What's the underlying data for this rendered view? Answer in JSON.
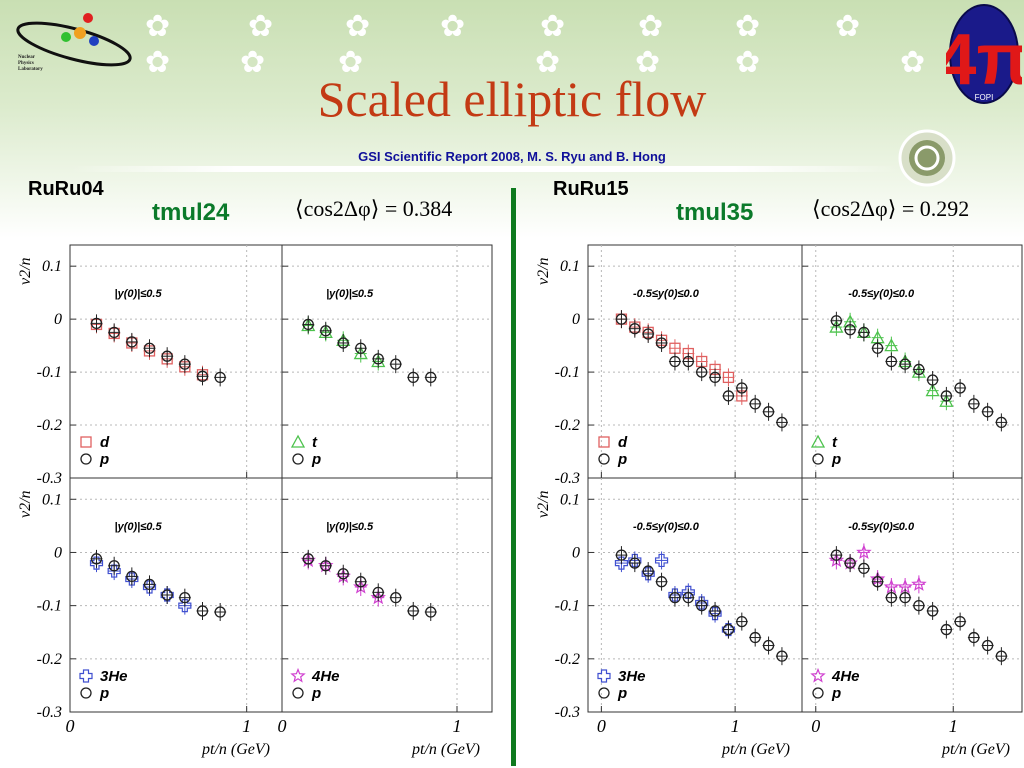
{
  "slide": {
    "title": "Scaled elliptic flow",
    "subtitle": "GSI Scientific Report 2008, M. S. Ryu and B. Hong",
    "logo_left_text": [
      "Nuclear",
      "Physics",
      "Laboratory"
    ],
    "logo_right_text": "FOPI",
    "accent_color": "#c33a14",
    "trigger_color": "#0b7a2a",
    "divider_color": "#0e7a1e"
  },
  "left_panel": {
    "system": "RuRu04",
    "trigger": "tmul24",
    "cos_label": "⟨cos2Δφ⟩ = 0.384"
  },
  "right_panel": {
    "system": "RuRu15",
    "trigger": "tmul35",
    "cos_label": "⟨cos2Δφ⟩ = 0.292"
  },
  "axes": {
    "ylabel": "v2/n",
    "xlabel": "pt/n (GeV)",
    "yticks": [
      "0.1",
      "0",
      "-0.1",
      "-0.2",
      "-0.3"
    ],
    "xticks": [
      "0",
      "1"
    ]
  },
  "chart_data": [
    {
      "type": "scatter",
      "panel": "RuRu04 top-left",
      "rapidity": "|y(0)|≤0.5",
      "xlim": [
        0,
        1.2
      ],
      "ylim": [
        -0.3,
        0.14
      ],
      "series": [
        {
          "name": "d",
          "color": "#e06060",
          "marker": "square",
          "x": [
            0.15,
            0.25,
            0.35,
            0.45,
            0.55,
            0.65,
            0.75
          ],
          "y": [
            -0.01,
            -0.027,
            -0.045,
            -0.06,
            -0.075,
            -0.09,
            -0.105
          ]
        },
        {
          "name": "p",
          "color": "#202020",
          "marker": "circle",
          "x": [
            0.15,
            0.25,
            0.35,
            0.45,
            0.55,
            0.65,
            0.75,
            0.85
          ],
          "y": [
            -0.008,
            -0.025,
            -0.043,
            -0.055,
            -0.07,
            -0.085,
            -0.108,
            -0.11
          ]
        }
      ]
    },
    {
      "type": "scatter",
      "panel": "RuRu04 top-right",
      "rapidity": "|y(0)|≤0.5",
      "xlim": [
        0,
        1.2
      ],
      "ylim": [
        -0.3,
        0.14
      ],
      "series": [
        {
          "name": "t",
          "color": "#4cc24c",
          "marker": "triangle",
          "x": [
            0.15,
            0.25,
            0.35,
            0.45,
            0.55
          ],
          "y": [
            -0.012,
            -0.025,
            -0.04,
            -0.065,
            -0.08
          ]
        },
        {
          "name": "p",
          "color": "#202020",
          "marker": "circle",
          "x": [
            0.15,
            0.25,
            0.35,
            0.45,
            0.55,
            0.65,
            0.75,
            0.85
          ],
          "y": [
            -0.01,
            -0.022,
            -0.045,
            -0.055,
            -0.075,
            -0.085,
            -0.11,
            -0.11
          ]
        }
      ]
    },
    {
      "type": "scatter",
      "panel": "RuRu04 bottom-left",
      "rapidity": "|y(0)|≤0.5",
      "xlim": [
        0,
        1.2
      ],
      "ylim": [
        -0.3,
        0.14
      ],
      "series": [
        {
          "name": "3He",
          "color": "#4050d0",
          "marker": "cross",
          "x": [
            0.15,
            0.25,
            0.35,
            0.45,
            0.55,
            0.65
          ],
          "y": [
            -0.02,
            -0.035,
            -0.05,
            -0.065,
            -0.08,
            -0.1
          ]
        },
        {
          "name": "p",
          "color": "#202020",
          "marker": "circle",
          "x": [
            0.15,
            0.25,
            0.35,
            0.45,
            0.55,
            0.65,
            0.75,
            0.85
          ],
          "y": [
            -0.012,
            -0.025,
            -0.045,
            -0.06,
            -0.08,
            -0.085,
            -0.11,
            -0.112
          ]
        }
      ]
    },
    {
      "type": "scatter",
      "panel": "RuRu04 bottom-right",
      "rapidity": "|y(0)|≤0.5",
      "xlim": [
        0,
        1.2
      ],
      "ylim": [
        -0.3,
        0.14
      ],
      "series": [
        {
          "name": "4He",
          "color": "#d040d0",
          "marker": "star",
          "x": [
            0.15,
            0.25,
            0.35,
            0.45,
            0.55
          ],
          "y": [
            -0.015,
            -0.025,
            -0.045,
            -0.065,
            -0.085
          ]
        },
        {
          "name": "p",
          "color": "#202020",
          "marker": "circle",
          "x": [
            0.15,
            0.25,
            0.35,
            0.45,
            0.55,
            0.65,
            0.75,
            0.85
          ],
          "y": [
            -0.012,
            -0.025,
            -0.04,
            -0.055,
            -0.075,
            -0.085,
            -0.11,
            -0.112
          ]
        }
      ]
    },
    {
      "type": "scatter",
      "panel": "RuRu15 top-left",
      "rapidity": "-0.5≤y(0)≤0.0",
      "xlim": [
        -0.1,
        1.5
      ],
      "ylim": [
        -0.3,
        0.14
      ],
      "series": [
        {
          "name": "d",
          "color": "#e06060",
          "marker": "square",
          "x": [
            0.15,
            0.25,
            0.35,
            0.45,
            0.55,
            0.65,
            0.75,
            0.85,
            0.95,
            1.05
          ],
          "y": [
            0,
            -0.015,
            -0.025,
            -0.04,
            -0.055,
            -0.065,
            -0.08,
            -0.095,
            -0.11,
            -0.145
          ]
        },
        {
          "name": "p",
          "color": "#202020",
          "marker": "circle",
          "x": [
            0.15,
            0.25,
            0.35,
            0.45,
            0.55,
            0.65,
            0.75,
            0.85,
            0.95,
            1.05,
            1.15,
            1.25,
            1.35
          ],
          "y": [
            0,
            -0.018,
            -0.028,
            -0.045,
            -0.08,
            -0.08,
            -0.1,
            -0.11,
            -0.145,
            -0.13,
            -0.16,
            -0.175,
            -0.195
          ]
        }
      ]
    },
    {
      "type": "scatter",
      "panel": "RuRu15 top-right",
      "rapidity": "-0.5≤y(0)≤0.0",
      "xlim": [
        -0.1,
        1.5
      ],
      "ylim": [
        -0.3,
        0.14
      ],
      "series": [
        {
          "name": "t",
          "color": "#4cc24c",
          "marker": "triangle",
          "x": [
            0.15,
            0.25,
            0.35,
            0.45,
            0.55,
            0.65,
            0.75,
            0.85,
            0.95
          ],
          "y": [
            -0.015,
            -0.005,
            -0.025,
            -0.035,
            -0.05,
            -0.08,
            -0.1,
            -0.135,
            -0.155
          ]
        },
        {
          "name": "p",
          "color": "#202020",
          "marker": "circle",
          "x": [
            0.15,
            0.25,
            0.35,
            0.45,
            0.55,
            0.65,
            0.75,
            0.85,
            0.95,
            1.05,
            1.15,
            1.25,
            1.35
          ],
          "y": [
            -0.003,
            -0.02,
            -0.025,
            -0.055,
            -0.08,
            -0.085,
            -0.095,
            -0.115,
            -0.145,
            -0.13,
            -0.16,
            -0.175,
            -0.195
          ]
        }
      ]
    },
    {
      "type": "scatter",
      "panel": "RuRu15 bottom-left",
      "rapidity": "-0.5≤y(0)≤0.0",
      "xlim": [
        -0.1,
        1.5
      ],
      "ylim": [
        -0.3,
        0.14
      ],
      "series": [
        {
          "name": "3He",
          "color": "#4050d0",
          "marker": "cross",
          "x": [
            0.15,
            0.25,
            0.35,
            0.45,
            0.55,
            0.65,
            0.75,
            0.85,
            0.95
          ],
          "y": [
            -0.02,
            -0.015,
            -0.04,
            -0.015,
            -0.08,
            -0.075,
            -0.095,
            -0.115,
            -0.145
          ]
        },
        {
          "name": "p",
          "color": "#202020",
          "marker": "circle",
          "x": [
            0.15,
            0.25,
            0.35,
            0.45,
            0.55,
            0.65,
            0.75,
            0.85,
            0.95,
            1.05,
            1.15,
            1.25,
            1.35
          ],
          "y": [
            -0.005,
            -0.02,
            -0.035,
            -0.055,
            -0.085,
            -0.085,
            -0.1,
            -0.11,
            -0.145,
            -0.13,
            -0.16,
            -0.175,
            -0.195
          ]
        }
      ]
    },
    {
      "type": "scatter",
      "panel": "RuRu15 bottom-right",
      "rapidity": "-0.5≤y(0)≤0.0",
      "xlim": [
        -0.1,
        1.5
      ],
      "ylim": [
        -0.3,
        0.14
      ],
      "series": [
        {
          "name": "4He",
          "color": "#d040d0",
          "marker": "star",
          "x": [
            0.15,
            0.25,
            0.35,
            0.45,
            0.55,
            0.65,
            0.75
          ],
          "y": [
            -0.015,
            -0.02,
            0.0,
            -0.05,
            -0.065,
            -0.065,
            -0.06
          ]
        },
        {
          "name": "p",
          "color": "#202020",
          "marker": "circle",
          "x": [
            0.15,
            0.25,
            0.35,
            0.45,
            0.55,
            0.65,
            0.75,
            0.85,
            0.95,
            1.05,
            1.15,
            1.25,
            1.35
          ],
          "y": [
            -0.005,
            -0.02,
            -0.03,
            -0.055,
            -0.085,
            -0.085,
            -0.1,
            -0.11,
            -0.145,
            -0.13,
            -0.16,
            -0.175,
            -0.195
          ]
        }
      ]
    }
  ]
}
